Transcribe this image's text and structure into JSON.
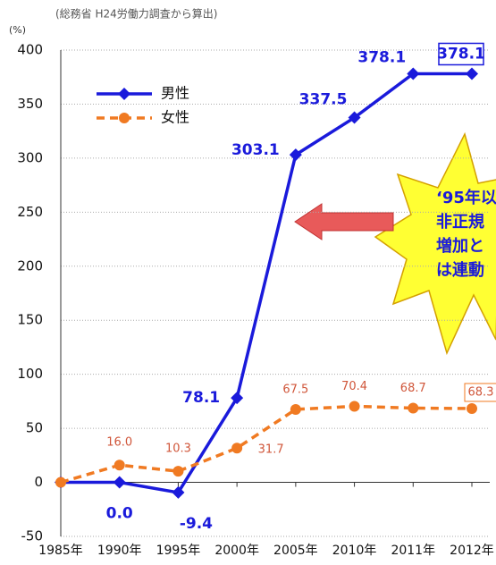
{
  "chart_data": {
    "type": "line",
    "source": "(総務省 H24労働力調査から算出)",
    "unit": "(%)",
    "categories": [
      "1985年",
      "1990年",
      "1995年",
      "2000年",
      "2005年",
      "2010年",
      "2011年",
      "2012年"
    ],
    "series": [
      {
        "name": "男性",
        "color": "#1a1adb",
        "values": [
          0,
          0,
          -9.4,
          78.1,
          303.1,
          337.5,
          378.1,
          378.1
        ],
        "value_labels": [
          null,
          "0.0",
          "-9.4",
          "78.1",
          "303.1",
          "337.5",
          "378.1",
          "378.1"
        ]
      },
      {
        "name": "女性",
        "color": "#f07a22",
        "values": [
          0,
          16,
          10.3,
          31.7,
          67.5,
          70.4,
          68.7,
          68.3
        ],
        "value_labels": [
          null,
          "16.0",
          "10.3",
          "31.7",
          "67.5",
          "70.4",
          "68.7",
          "68.3"
        ]
      }
    ],
    "annotation": [
      "‘95年以",
      "非正規",
      "増加と",
      "は連動"
    ],
    "ylim": [
      -50,
      400
    ],
    "yticks": [
      -50,
      0,
      50,
      100,
      150,
      200,
      250,
      300,
      350,
      400
    ],
    "grid": true
  }
}
